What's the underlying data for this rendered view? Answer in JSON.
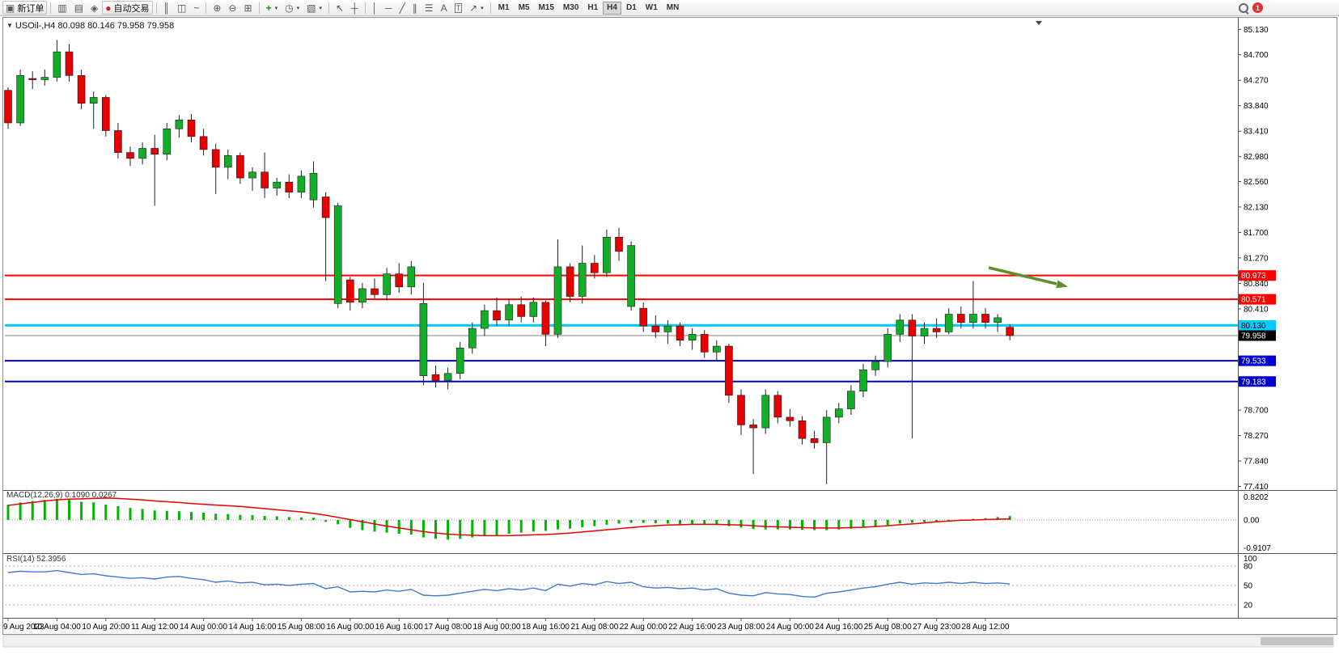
{
  "toolbar": {
    "items": [
      {
        "kind": "button",
        "name": "new-order-button",
        "glyph": "▣",
        "glyph_name": "new-order-icon",
        "label": "新订单"
      },
      {
        "kind": "sep"
      },
      {
        "kind": "icon",
        "name": "market-watch-button",
        "glyph": "▥",
        "glyph_name": "market-watch-icon"
      },
      {
        "kind": "icon",
        "name": "data-window-button",
        "glyph": "▤",
        "glyph_name": "data-window-icon"
      },
      {
        "kind": "icon",
        "name": "navigator-button",
        "glyph": "◈",
        "glyph_name": "navigator-icon"
      },
      {
        "kind": "button",
        "name": "auto-trading-button",
        "glyph": "●",
        "glyph_color": "#cc2222",
        "glyph_name": "auto-trading-icon",
        "label": "自动交易"
      },
      {
        "kind": "sep"
      },
      {
        "kind": "icon",
        "name": "bar-chart-button",
        "glyph": "║",
        "glyph_name": "bar-chart-icon"
      },
      {
        "kind": "icon",
        "name": "candlestick-button",
        "glyph": "◫",
        "glyph_name": "candlestick-icon"
      },
      {
        "kind": "icon",
        "name": "line-chart-button",
        "glyph": "~",
        "glyph_name": "line-chart-icon"
      },
      {
        "kind": "sep"
      },
      {
        "kind": "icon",
        "name": "zoom-in-button",
        "glyph": "⊕",
        "glyph_name": "zoom-in-icon"
      },
      {
        "kind": "icon",
        "name": "zoom-out-button",
        "glyph": "⊖",
        "glyph_name": "zoom-out-icon"
      },
      {
        "kind": "icon",
        "name": "tile-windows-button",
        "glyph": "⊞",
        "glyph_name": "tile-windows-icon"
      },
      {
        "kind": "sep"
      },
      {
        "kind": "icon",
        "name": "indicators-button",
        "glyph": "+",
        "glyph_color": "#1a8f1a",
        "glyph_name": "indicators-icon",
        "caret": true
      },
      {
        "kind": "icon",
        "name": "periods-button",
        "glyph": "◷",
        "glyph_name": "periods-clock-icon",
        "caret": true
      },
      {
        "kind": "icon",
        "name": "templates-button",
        "glyph": "▧",
        "glyph_name": "templates-icon",
        "caret": true
      },
      {
        "kind": "sep"
      },
      {
        "kind": "icon",
        "name": "cursor-button",
        "glyph": "↖",
        "glyph_name": "cursor-icon"
      },
      {
        "kind": "icon",
        "name": "crosshair-button",
        "glyph": "┼",
        "glyph_name": "crosshair-icon"
      },
      {
        "kind": "sep"
      },
      {
        "kind": "icon",
        "name": "vertical-line-button",
        "glyph": "│",
        "glyph_name": "vertical-line-icon"
      },
      {
        "kind": "icon",
        "name": "horizontal-line-button",
        "glyph": "─",
        "glyph_name": "horizontal-line-icon"
      },
      {
        "kind": "icon",
        "name": "trendline-button",
        "glyph": "╱",
        "glyph_name": "trendline-icon"
      },
      {
        "kind": "icon",
        "name": "channel-button",
        "glyph": "∥",
        "glyph_name": "channel-icon"
      },
      {
        "kind": "icon",
        "name": "fibonacci-button",
        "glyph": "☰",
        "glyph_name": "fibonacci-icon"
      },
      {
        "kind": "icon",
        "name": "text-button",
        "glyph": "A",
        "glyph_name": "text-icon"
      },
      {
        "kind": "icon",
        "name": "label-button",
        "glyph": "T",
        "glyph_name": "text-label-icon",
        "boxed": true
      },
      {
        "kind": "icon",
        "name": "arrows-button",
        "glyph": "↗",
        "glyph_name": "arrows-icon",
        "caret": true
      },
      {
        "kind": "sep"
      },
      {
        "kind": "tf",
        "label": "M1"
      },
      {
        "kind": "tf",
        "label": "M5"
      },
      {
        "kind": "tf",
        "label": "M15"
      },
      {
        "kind": "tf",
        "label": "M30"
      },
      {
        "kind": "tf",
        "label": "H1"
      },
      {
        "kind": "tf",
        "label": "H4",
        "active": true
      },
      {
        "kind": "tf",
        "label": "D1"
      },
      {
        "kind": "tf",
        "label": "W1"
      },
      {
        "kind": "tf",
        "label": "MN"
      },
      {
        "kind": "spacer"
      },
      {
        "kind": "search",
        "name": "search-button"
      },
      {
        "kind": "badge",
        "name": "notifications-badge",
        "label": "1"
      },
      {
        "kind": "rightpad"
      }
    ]
  },
  "chart": {
    "collapse_icon": "▼",
    "symbol_label": "USOil-,H4  80.098 80.146 79.958 79.958"
  },
  "chart_data": {
    "type": "candlestick",
    "symbol": "USOil-",
    "timeframe": "H4",
    "ohlc_display": {
      "open": "80.098",
      "high": "80.146",
      "low": "79.958",
      "close": "79.958"
    },
    "colors": {
      "bull": "#13ae27",
      "bear": "#e60000",
      "wick": "#222222",
      "macd_hist": "#00b400",
      "macd_signal": "#e60000",
      "rsi_line": "#3e7bce",
      "line_red": "#ff0000",
      "line_cyan": "#00ccff",
      "line_blue": "#0000cc",
      "bid_line": "#808080",
      "arrow": "#5f8f2c"
    },
    "price_axis_ticks": [
      "85.130",
      "84.700",
      "84.270",
      "83.840",
      "83.410",
      "82.980",
      "82.560",
      "82.130",
      "81.700",
      "81.270",
      "80.840",
      "80.410",
      "78.700",
      "78.270",
      "77.840",
      "77.410"
    ],
    "y_range": [
      77.35,
      85.27
    ],
    "candles": [
      [
        84.1,
        84.15,
        83.45,
        83.55
      ],
      [
        83.55,
        84.45,
        83.5,
        84.35
      ],
      [
        84.3,
        84.42,
        84.12,
        84.28
      ],
      [
        84.28,
        84.45,
        84.18,
        84.32
      ],
      [
        84.32,
        84.95,
        84.25,
        84.75
      ],
      [
        84.75,
        84.88,
        84.25,
        84.35
      ],
      [
        84.35,
        84.45,
        83.78,
        83.88
      ],
      [
        83.88,
        84.08,
        83.45,
        83.98
      ],
      [
        83.98,
        84.02,
        83.32,
        83.42
      ],
      [
        83.42,
        83.55,
        82.95,
        83.05
      ],
      [
        83.05,
        83.15,
        82.82,
        82.95
      ],
      [
        82.95,
        83.22,
        82.85,
        83.12
      ],
      [
        83.12,
        83.35,
        82.15,
        83.02
      ],
      [
        83.02,
        83.55,
        82.92,
        83.45
      ],
      [
        83.45,
        83.68,
        83.3,
        83.6
      ],
      [
        83.6,
        83.7,
        83.22,
        83.32
      ],
      [
        83.32,
        83.45,
        83.0,
        83.1
      ],
      [
        83.1,
        83.2,
        82.35,
        82.8
      ],
      [
        82.8,
        83.1,
        82.6,
        83.0
      ],
      [
        83.0,
        83.05,
        82.52,
        82.62
      ],
      [
        82.62,
        82.8,
        82.4,
        82.72
      ],
      [
        82.72,
        83.05,
        82.28,
        82.45
      ],
      [
        82.45,
        82.62,
        82.32,
        82.55
      ],
      [
        82.55,
        82.68,
        82.28,
        82.38
      ],
      [
        82.38,
        82.75,
        82.28,
        82.65
      ],
      [
        82.25,
        82.9,
        82.12,
        82.7
      ],
      [
        82.3,
        82.38,
        80.88,
        81.95
      ],
      [
        80.5,
        82.2,
        80.42,
        82.15
      ],
      [
        80.9,
        80.95,
        80.38,
        80.52
      ],
      [
        80.52,
        80.85,
        80.42,
        80.75
      ],
      [
        80.75,
        80.92,
        80.58,
        80.65
      ],
      [
        80.65,
        81.1,
        80.55,
        81.0
      ],
      [
        81.0,
        81.18,
        80.68,
        80.78
      ],
      [
        80.78,
        81.22,
        80.65,
        81.12
      ],
      [
        79.28,
        80.85,
        79.12,
        80.5
      ],
      [
        79.3,
        79.45,
        79.08,
        79.2
      ],
      [
        79.2,
        79.42,
        79.05,
        79.32
      ],
      [
        79.32,
        79.85,
        79.22,
        79.75
      ],
      [
        79.75,
        80.18,
        79.65,
        80.08
      ],
      [
        80.08,
        80.48,
        79.95,
        80.38
      ],
      [
        80.38,
        80.6,
        80.12,
        80.22
      ],
      [
        80.22,
        80.58,
        80.12,
        80.48
      ],
      [
        80.48,
        80.62,
        80.18,
        80.28
      ],
      [
        80.28,
        80.6,
        80.18,
        80.52
      ],
      [
        80.52,
        80.55,
        79.78,
        79.98
      ],
      [
        79.98,
        81.58,
        79.92,
        81.12
      ],
      [
        81.12,
        81.18,
        80.52,
        80.62
      ],
      [
        80.62,
        81.48,
        80.5,
        81.18
      ],
      [
        81.18,
        81.32,
        80.92,
        81.02
      ],
      [
        81.02,
        81.75,
        80.95,
        81.62
      ],
      [
        81.62,
        81.78,
        81.22,
        81.38
      ],
      [
        80.45,
        81.55,
        80.38,
        81.48
      ],
      [
        80.42,
        80.52,
        80.02,
        80.12
      ],
      [
        80.12,
        80.3,
        79.92,
        80.02
      ],
      [
        80.02,
        80.22,
        79.82,
        80.12
      ],
      [
        80.12,
        80.18,
        79.78,
        79.88
      ],
      [
        79.88,
        80.08,
        79.72,
        79.98
      ],
      [
        79.98,
        80.05,
        79.58,
        79.68
      ],
      [
        79.68,
        79.88,
        79.52,
        79.78
      ],
      [
        79.78,
        79.82,
        78.82,
        78.95
      ],
      [
        78.95,
        79.05,
        78.28,
        78.45
      ],
      [
        78.45,
        78.55,
        77.62,
        78.4
      ],
      [
        78.4,
        79.05,
        78.3,
        78.95
      ],
      [
        78.95,
        79.02,
        78.48,
        78.58
      ],
      [
        78.58,
        78.72,
        78.42,
        78.52
      ],
      [
        78.52,
        78.6,
        78.12,
        78.22
      ],
      [
        78.22,
        78.35,
        78.05,
        78.15
      ],
      [
        78.15,
        78.7,
        77.45,
        78.58
      ],
      [
        78.58,
        78.82,
        78.48,
        78.72
      ],
      [
        78.72,
        79.12,
        78.62,
        79.02
      ],
      [
        79.02,
        79.48,
        78.92,
        79.38
      ],
      [
        79.38,
        79.62,
        79.28,
        79.52
      ],
      [
        79.52,
        80.08,
        79.42,
        79.98
      ],
      [
        79.98,
        80.32,
        79.85,
        80.22
      ],
      [
        80.22,
        80.32,
        78.22,
        79.95
      ],
      [
        79.95,
        80.18,
        79.82,
        80.08
      ],
      [
        80.08,
        80.25,
        79.92,
        80.02
      ],
      [
        80.02,
        80.42,
        79.98,
        80.32
      ],
      [
        80.32,
        80.45,
        80.08,
        80.18
      ],
      [
        80.18,
        80.88,
        80.08,
        80.32
      ],
      [
        80.32,
        80.42,
        80.08,
        80.18
      ],
      [
        80.18,
        80.32,
        80.02,
        80.26
      ],
      [
        80.1,
        80.15,
        79.88,
        79.958
      ]
    ],
    "time_labels": [
      "9 Aug 2023",
      "10 Aug 04:00",
      "10 Aug 20:00",
      "11 Aug 12:00",
      "14 Aug 00:00",
      "14 Aug 16:00",
      "15 Aug 08:00",
      "16 Aug 00:00",
      "16 Aug 16:00",
      "17 Aug 08:00",
      "18 Aug 00:00",
      "18 Aug 16:00",
      "21 Aug 08:00",
      "22 Aug 00:00",
      "22 Aug 16:00",
      "23 Aug 08:00",
      "24 Aug 00:00",
      "24 Aug 16:00",
      "25 Aug 08:00",
      "27 Aug 23:00",
      "28 Aug 12:00"
    ],
    "hlines": [
      {
        "price": 80.973,
        "label": "80.973",
        "color": "#ff0000",
        "width": 2,
        "text": "#ffffff"
      },
      {
        "price": 80.571,
        "label": "80.571",
        "color": "#ff0000",
        "width": 2,
        "text": "#ffffff"
      },
      {
        "price": 80.13,
        "label": "80.130",
        "color": "#00ccff",
        "width": 3,
        "text": "#000000"
      },
      {
        "price": 79.533,
        "label": "79.533",
        "color": "#0000cc",
        "width": 2,
        "text": "#ffffff"
      },
      {
        "price": 79.183,
        "label": "79.183",
        "color": "#0000cc",
        "width": 2,
        "text": "#ffffff"
      }
    ],
    "current_price": {
      "value": 79.958,
      "label": "79.958",
      "box": "#000000",
      "text": "#ffffff"
    },
    "arrow_annotation": {
      "shape": "arrow-down-right",
      "color": "#5f8f2c"
    },
    "macd": {
      "label": "MACD(12,26,9)",
      "values_label": "0.1090 0.0267",
      "axis_labels": [
        "0.8202",
        "0.00",
        "-0.9107"
      ],
      "range": [
        -0.9107,
        0.8202
      ],
      "histogram": [
        0.42,
        0.48,
        0.52,
        0.55,
        0.58,
        0.55,
        0.5,
        0.48,
        0.42,
        0.38,
        0.33,
        0.3,
        0.26,
        0.25,
        0.24,
        0.22,
        0.2,
        0.17,
        0.16,
        0.14,
        0.13,
        0.11,
        0.1,
        0.08,
        0.07,
        0.06,
        -0.05,
        -0.12,
        -0.22,
        -0.28,
        -0.32,
        -0.35,
        -0.38,
        -0.4,
        -0.48,
        -0.52,
        -0.54,
        -0.52,
        -0.48,
        -0.44,
        -0.42,
        -0.38,
        -0.35,
        -0.32,
        -0.3,
        -0.26,
        -0.24,
        -0.2,
        -0.17,
        -0.13,
        -0.1,
        -0.08,
        -0.08,
        -0.09,
        -0.1,
        -0.11,
        -0.12,
        -0.13,
        -0.14,
        -0.17,
        -0.21,
        -0.25,
        -0.26,
        -0.26,
        -0.26,
        -0.27,
        -0.28,
        -0.28,
        -0.26,
        -0.24,
        -0.21,
        -0.18,
        -0.14,
        -0.1,
        -0.08,
        -0.06,
        -0.04,
        -0.02,
        0.01,
        0.03,
        0.05,
        0.08,
        0.109
      ],
      "signal": [
        0.4,
        0.44,
        0.48,
        0.52,
        0.55,
        0.57,
        0.58,
        0.59,
        0.6,
        0.59,
        0.57,
        0.55,
        0.52,
        0.5,
        0.48,
        0.45,
        0.43,
        0.41,
        0.39,
        0.37,
        0.34,
        0.31,
        0.28,
        0.25,
        0.22,
        0.18,
        0.13,
        0.07,
        0.01,
        -0.05,
        -0.11,
        -0.17,
        -0.22,
        -0.27,
        -0.32,
        -0.36,
        -0.39,
        -0.41,
        -0.42,
        -0.43,
        -0.43,
        -0.43,
        -0.42,
        -0.41,
        -0.4,
        -0.38,
        -0.36,
        -0.33,
        -0.3,
        -0.27,
        -0.24,
        -0.21,
        -0.18,
        -0.16,
        -0.14,
        -0.13,
        -0.12,
        -0.12,
        -0.12,
        -0.13,
        -0.14,
        -0.16,
        -0.18,
        -0.19,
        -0.2,
        -0.21,
        -0.22,
        -0.22,
        -0.22,
        -0.21,
        -0.2,
        -0.18,
        -0.16,
        -0.13,
        -0.11,
        -0.08,
        -0.05,
        -0.03,
        -0.01,
        0.0,
        0.01,
        0.02,
        0.0267
      ]
    },
    "rsi": {
      "label": "RSI(14)",
      "value_label": "52.3956",
      "axis_labels": [
        "100",
        "80",
        "50",
        "20"
      ],
      "levels": [
        80,
        50,
        20
      ],
      "range": [
        0,
        100
      ],
      "values": [
        70,
        72,
        71,
        71,
        73,
        70,
        67,
        68,
        65,
        63,
        61,
        62,
        60,
        63,
        64,
        61,
        59,
        55,
        57,
        54,
        55,
        51,
        52,
        50,
        52,
        53,
        45,
        48,
        40,
        41,
        40,
        43,
        41,
        44,
        35,
        34,
        35,
        38,
        41,
        44,
        42,
        45,
        43,
        46,
        42,
        52,
        49,
        53,
        51,
        56,
        53,
        55,
        48,
        46,
        47,
        45,
        46,
        43,
        45,
        38,
        35,
        34,
        39,
        37,
        36,
        33,
        32,
        38,
        40,
        43,
        46,
        48,
        52,
        55,
        52,
        54,
        53,
        55,
        53,
        55,
        53,
        54,
        52.4
      ]
    }
  }
}
